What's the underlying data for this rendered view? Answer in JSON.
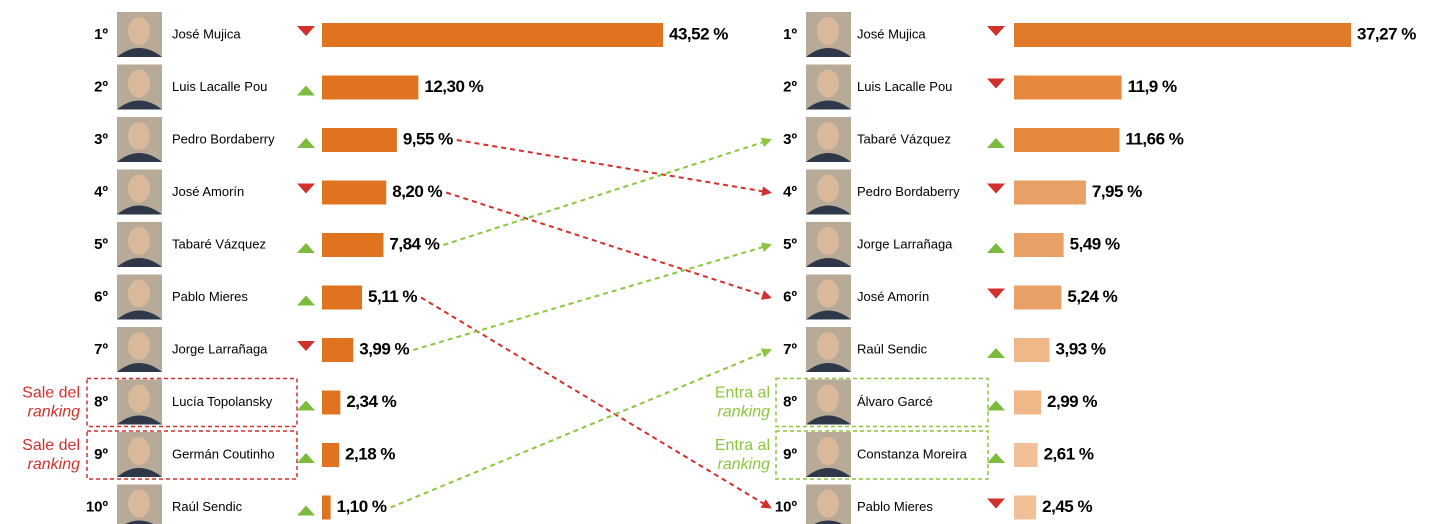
{
  "chart_data": [
    {
      "type": "bar",
      "ranks": [
        "1º",
        "2º",
        "3º",
        "4º",
        "5º",
        "6º",
        "7º",
        "8º",
        "9º",
        "10º"
      ],
      "categories": [
        "José Mujica",
        "Luis Lacalle Pou",
        "Pedro Bordaberry",
        "José Amorín",
        "Tabaré Vázquez",
        "Pablo Mieres",
        "Jorge Larrañaga",
        "Lucía Topolansky",
        "Germán Coutinho",
        "Raúl Sendic"
      ],
      "values": [
        43.52,
        12.3,
        9.55,
        8.2,
        7.84,
        5.11,
        3.99,
        2.34,
        2.18,
        1.1
      ],
      "value_labels": [
        "43,52 %",
        "12,30 %",
        "9,55 %",
        "8,20 %",
        "7,84 %",
        "5,11 %",
        "3,99 %",
        "2,34 %",
        "2,18 %",
        "1,10 %"
      ],
      "colors": [
        "#e07320",
        "#e07320",
        "#e07320",
        "#e07320",
        "#e07320",
        "#e07320",
        "#e07320",
        "#e07320",
        "#e07320",
        "#e07320"
      ],
      "trend": [
        "down",
        "up",
        "up",
        "down",
        "up",
        "up",
        "down",
        "up",
        "up",
        "up"
      ],
      "annotation_color": "#d2302c",
      "annotations": [
        null,
        null,
        null,
        null,
        null,
        null,
        null,
        {
          "text": "Sale del",
          "emphasis": "ranking"
        },
        {
          "text": "Sale del",
          "emphasis": "ranking"
        },
        null
      ]
    },
    {
      "type": "bar",
      "ranks": [
        "1º",
        "2º",
        "3º",
        "4º",
        "5º",
        "6º",
        "7º",
        "8º",
        "9º",
        "10º"
      ],
      "categories": [
        "José Mujica",
        "Luis Lacalle Pou",
        "Tabaré Vázquez",
        "Pedro Bordaberry",
        "Jorge Larrañaga",
        "José Amorín",
        "Raúl Sendic",
        "Álvaro Garcé",
        "Constanza Moreira",
        "Pablo Mieres"
      ],
      "values": [
        37.27,
        11.9,
        11.66,
        7.95,
        5.49,
        5.24,
        3.93,
        2.99,
        2.61,
        2.45
      ],
      "value_labels": [
        "37,27 %",
        "11,9 %",
        "11,66 %",
        "7,95 %",
        "5,49 %",
        "5,24 %",
        "3,93 %",
        "2,99 %",
        "2,61 %",
        "2,45 %"
      ],
      "colors": [
        "#e07a2a",
        "#e6893f",
        "#e6893f",
        "#e9a066",
        "#e9a066",
        "#e9a066",
        "#f0b889",
        "#f0b889",
        "#f2c098",
        "#f2c098"
      ],
      "trend": [
        "down",
        "down",
        "up",
        "down",
        "up",
        "down",
        "up",
        "up",
        "up",
        "down"
      ],
      "annotation_color": "#8cc63f",
      "annotations": [
        null,
        null,
        null,
        null,
        null,
        null,
        null,
        {
          "text": "Entra al",
          "emphasis": "ranking"
        },
        {
          "text": "Entra al",
          "emphasis": "ranking"
        },
        null
      ]
    }
  ]
}
